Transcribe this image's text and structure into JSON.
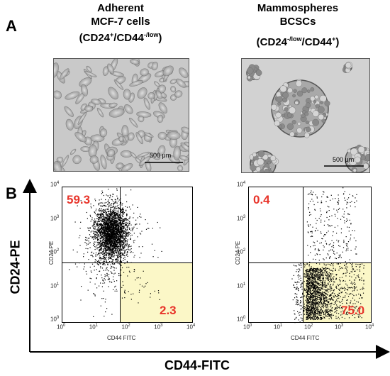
{
  "panels": {
    "a": "A",
    "b": "B"
  },
  "columns": [
    {
      "title_lines": [
        "Adherent",
        "MCF-7 cells"
      ],
      "phenotype_prefix": "(CD24",
      "sup1": "+",
      "mid": "/CD44",
      "sup2": "-/low",
      "suffix": ")",
      "scale_bar": "500 μm"
    },
    {
      "title_lines": [
        "Mammospheres",
        "BCSCs"
      ],
      "phenotype_prefix": "(CD24",
      "sup1": "-/low",
      "mid": "/CD44",
      "sup2": "+",
      "suffix": ")",
      "scale_bar": "500 μm"
    }
  ],
  "axes": {
    "y_big": "CD24-PE",
    "x_big": "CD44-FITC",
    "y_small": "CD24 PE",
    "x_small": "CD44 FITC",
    "tick_exponents": [
      "0",
      "1",
      "2",
      "3",
      "4"
    ],
    "tick_base": "10"
  },
  "colors": {
    "quadrant_label": "#e8342a",
    "gated_fill": "#fbf7c7"
  },
  "chart_data": [
    {
      "type": "scatter",
      "xlabel": "CD44 FITC",
      "ylabel": "CD24 PE",
      "x_scale": "log",
      "y_scale": "log",
      "xlim": [
        1,
        10000
      ],
      "ylim": [
        1,
        10000
      ],
      "gate": {
        "x": 60,
        "y": 60
      },
      "quadrant_values": {
        "upper_left": "59.3",
        "lower_right": "2.3"
      }
    },
    {
      "type": "scatter",
      "xlabel": "CD44 FITC",
      "ylabel": "CD24 PE",
      "x_scale": "log",
      "y_scale": "log",
      "xlim": [
        1,
        10000
      ],
      "ylim": [
        1,
        10000
      ],
      "gate": {
        "x": 60,
        "y": 60
      },
      "quadrant_values": {
        "upper_left": "0.4",
        "lower_right": "75.0"
      }
    }
  ]
}
